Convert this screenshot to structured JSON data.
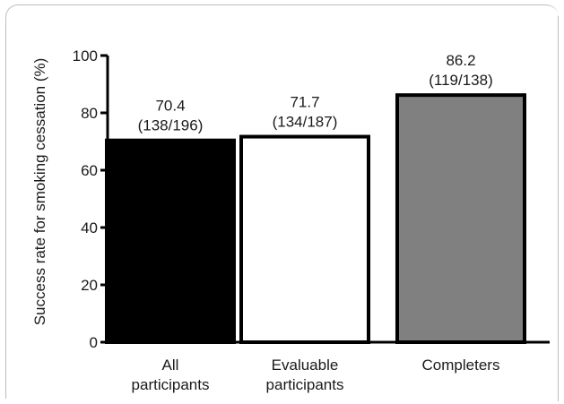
{
  "chart_data": {
    "type": "bar",
    "categories": [
      "All participants",
      "Evaluable participants",
      "Completers"
    ],
    "category_lines": [
      [
        "All",
        "participants"
      ],
      [
        "Evaluable",
        "participants"
      ],
      [
        "Completers"
      ]
    ],
    "values": [
      70.4,
      71.7,
      86.2
    ],
    "value_labels": [
      "70.4",
      "71.7",
      "86.2"
    ],
    "count_labels": [
      "(138/196)",
      "(134/187)",
      "(119/138)"
    ],
    "bar_colors": [
      "#000000",
      "#ffffff",
      "#808080"
    ],
    "bar_stroke": "#000000",
    "title": "",
    "xlabel": "",
    "ylabel": "Success rate for smoking cessation (%)",
    "ylim": [
      0,
      100
    ],
    "yticks": [
      0,
      20,
      40,
      60,
      80,
      100
    ],
    "grid": false,
    "legend": "none"
  }
}
